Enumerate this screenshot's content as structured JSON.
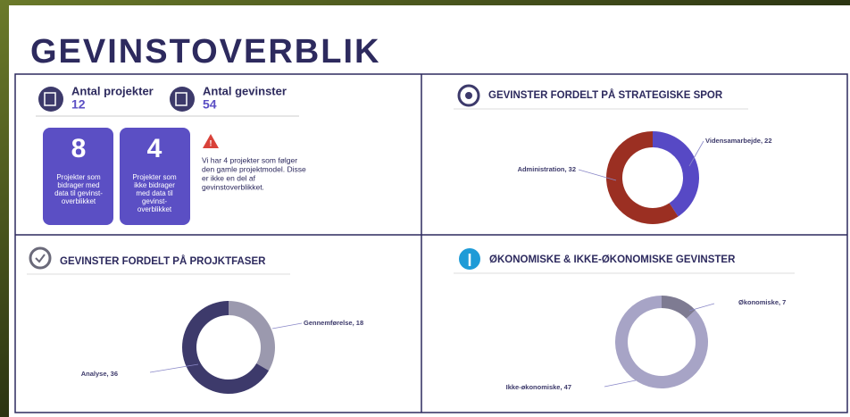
{
  "header": {
    "title": "GEVINSTOVERBLIK"
  },
  "stats": [
    {
      "label": "Antal projekter",
      "value": "12"
    },
    {
      "label": "Antal gevinster",
      "value": "54"
    }
  ],
  "cards": [
    {
      "number": "8",
      "lines": [
        "Projekter som",
        "bidrager med",
        "data til gevinst-",
        "overblikket"
      ]
    },
    {
      "number": "4",
      "lines": [
        "Projekter som",
        "ikke bidrager",
        "med data til",
        "gevinst-",
        "overblikket"
      ]
    }
  ],
  "warning": {
    "lines": [
      "Vi har 4 projekter som følger",
      "den gamle projektmodel. Disse",
      "er ikke en del af",
      "gevinstoverblikket."
    ]
  },
  "chart_data": [
    {
      "type": "pie",
      "title": "GEVINSTER FORDELT PÅ STRATEGISKE SPOR",
      "values": [
        22,
        32
      ],
      "value_labels": [
        "Vidensamarbejde, 22",
        "Administration, 32"
      ],
      "colors": [
        "#5749c5",
        "#9b2f22"
      ]
    },
    {
      "type": "pie",
      "title": "GEVINSTER FORDELT PÅ PROJKTFASER",
      "values": [
        18,
        36
      ],
      "value_labels": [
        "Gennemførelse, 18",
        "Analyse, 36"
      ],
      "colors": [
        "#9b99ae",
        "#3d3a6b"
      ]
    },
    {
      "type": "pie",
      "title": "ØKONOMISKE & IKKE-ØKONOMISKE GEVINSTER",
      "values": [
        7,
        47
      ],
      "value_labels": [
        "Økonomiske, 7",
        "Ikke-økonomiske, 47"
      ],
      "colors": [
        "#7e7b92",
        "#a7a4c6"
      ]
    }
  ]
}
